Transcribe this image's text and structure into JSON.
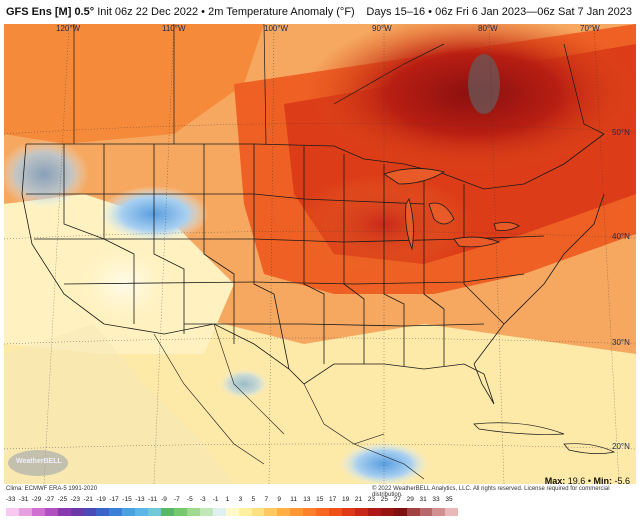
{
  "header": {
    "model": "GFS Ens [M] 0.5°",
    "init": "Init 06z 22 Dec 2022",
    "field": "2m Temperature Anomaly (°F)",
    "valid": "Days 15–16 • 06z Fri 6 Jan 2023—06z Sat 7 Jan 2023"
  },
  "longitudes": [
    "120°W",
    "110°W",
    "100°W",
    "90°W",
    "80°W",
    "70°W"
  ],
  "latitudes": [
    "50°N",
    "40°N",
    "30°N",
    "20°N"
  ],
  "footer": {
    "clim": "Clima: ECMWF ERA-5 1991-2020",
    "copyright": "© 2022 WeatherBELL Analytics, LLC. All rights reserved. License required for commercial distribution.",
    "logo": "WeatherBELL",
    "max_label": "Max:",
    "max_value": "19.6",
    "min_label": "Min:",
    "min_value": "-5.6"
  },
  "colorbar": {
    "labels": [
      "-33",
      "-31",
      "-29",
      "-27",
      "-25",
      "-23",
      "-21",
      "-19",
      "-17",
      "-15",
      "-13",
      "-11",
      "-9",
      "-7",
      "-5",
      "-3",
      "-1",
      "1",
      "3",
      "5",
      "7",
      "9",
      "11",
      "13",
      "15",
      "17",
      "19",
      "21",
      "23",
      "25",
      "27",
      "29",
      "31",
      "33",
      "35"
    ],
    "colors": [
      "#f8c8f0",
      "#e6a0e0",
      "#d070d0",
      "#b050c0",
      "#8a38b0",
      "#6a3aa8",
      "#4a4ab8",
      "#3a64c8",
      "#3a80d8",
      "#4aa0e0",
      "#5ab8e8",
      "#70c8d8",
      "#58b868",
      "#78c870",
      "#a0d890",
      "#c0e8b8",
      "#e0f0f0",
      "#fff8c8",
      "#fff0a0",
      "#ffe080",
      "#ffc860",
      "#ffb040",
      "#ff9830",
      "#ff8028",
      "#f86820",
      "#f05018",
      "#e03818",
      "#c82818",
      "#b01818",
      "#981410",
      "#801010",
      "#a04040",
      "#b86868",
      "#d09090",
      "#e8b8b8"
    ]
  },
  "map_features": {
    "great_lakes_icon": "lakes-shape",
    "state_borders": "us-state-lines"
  }
}
